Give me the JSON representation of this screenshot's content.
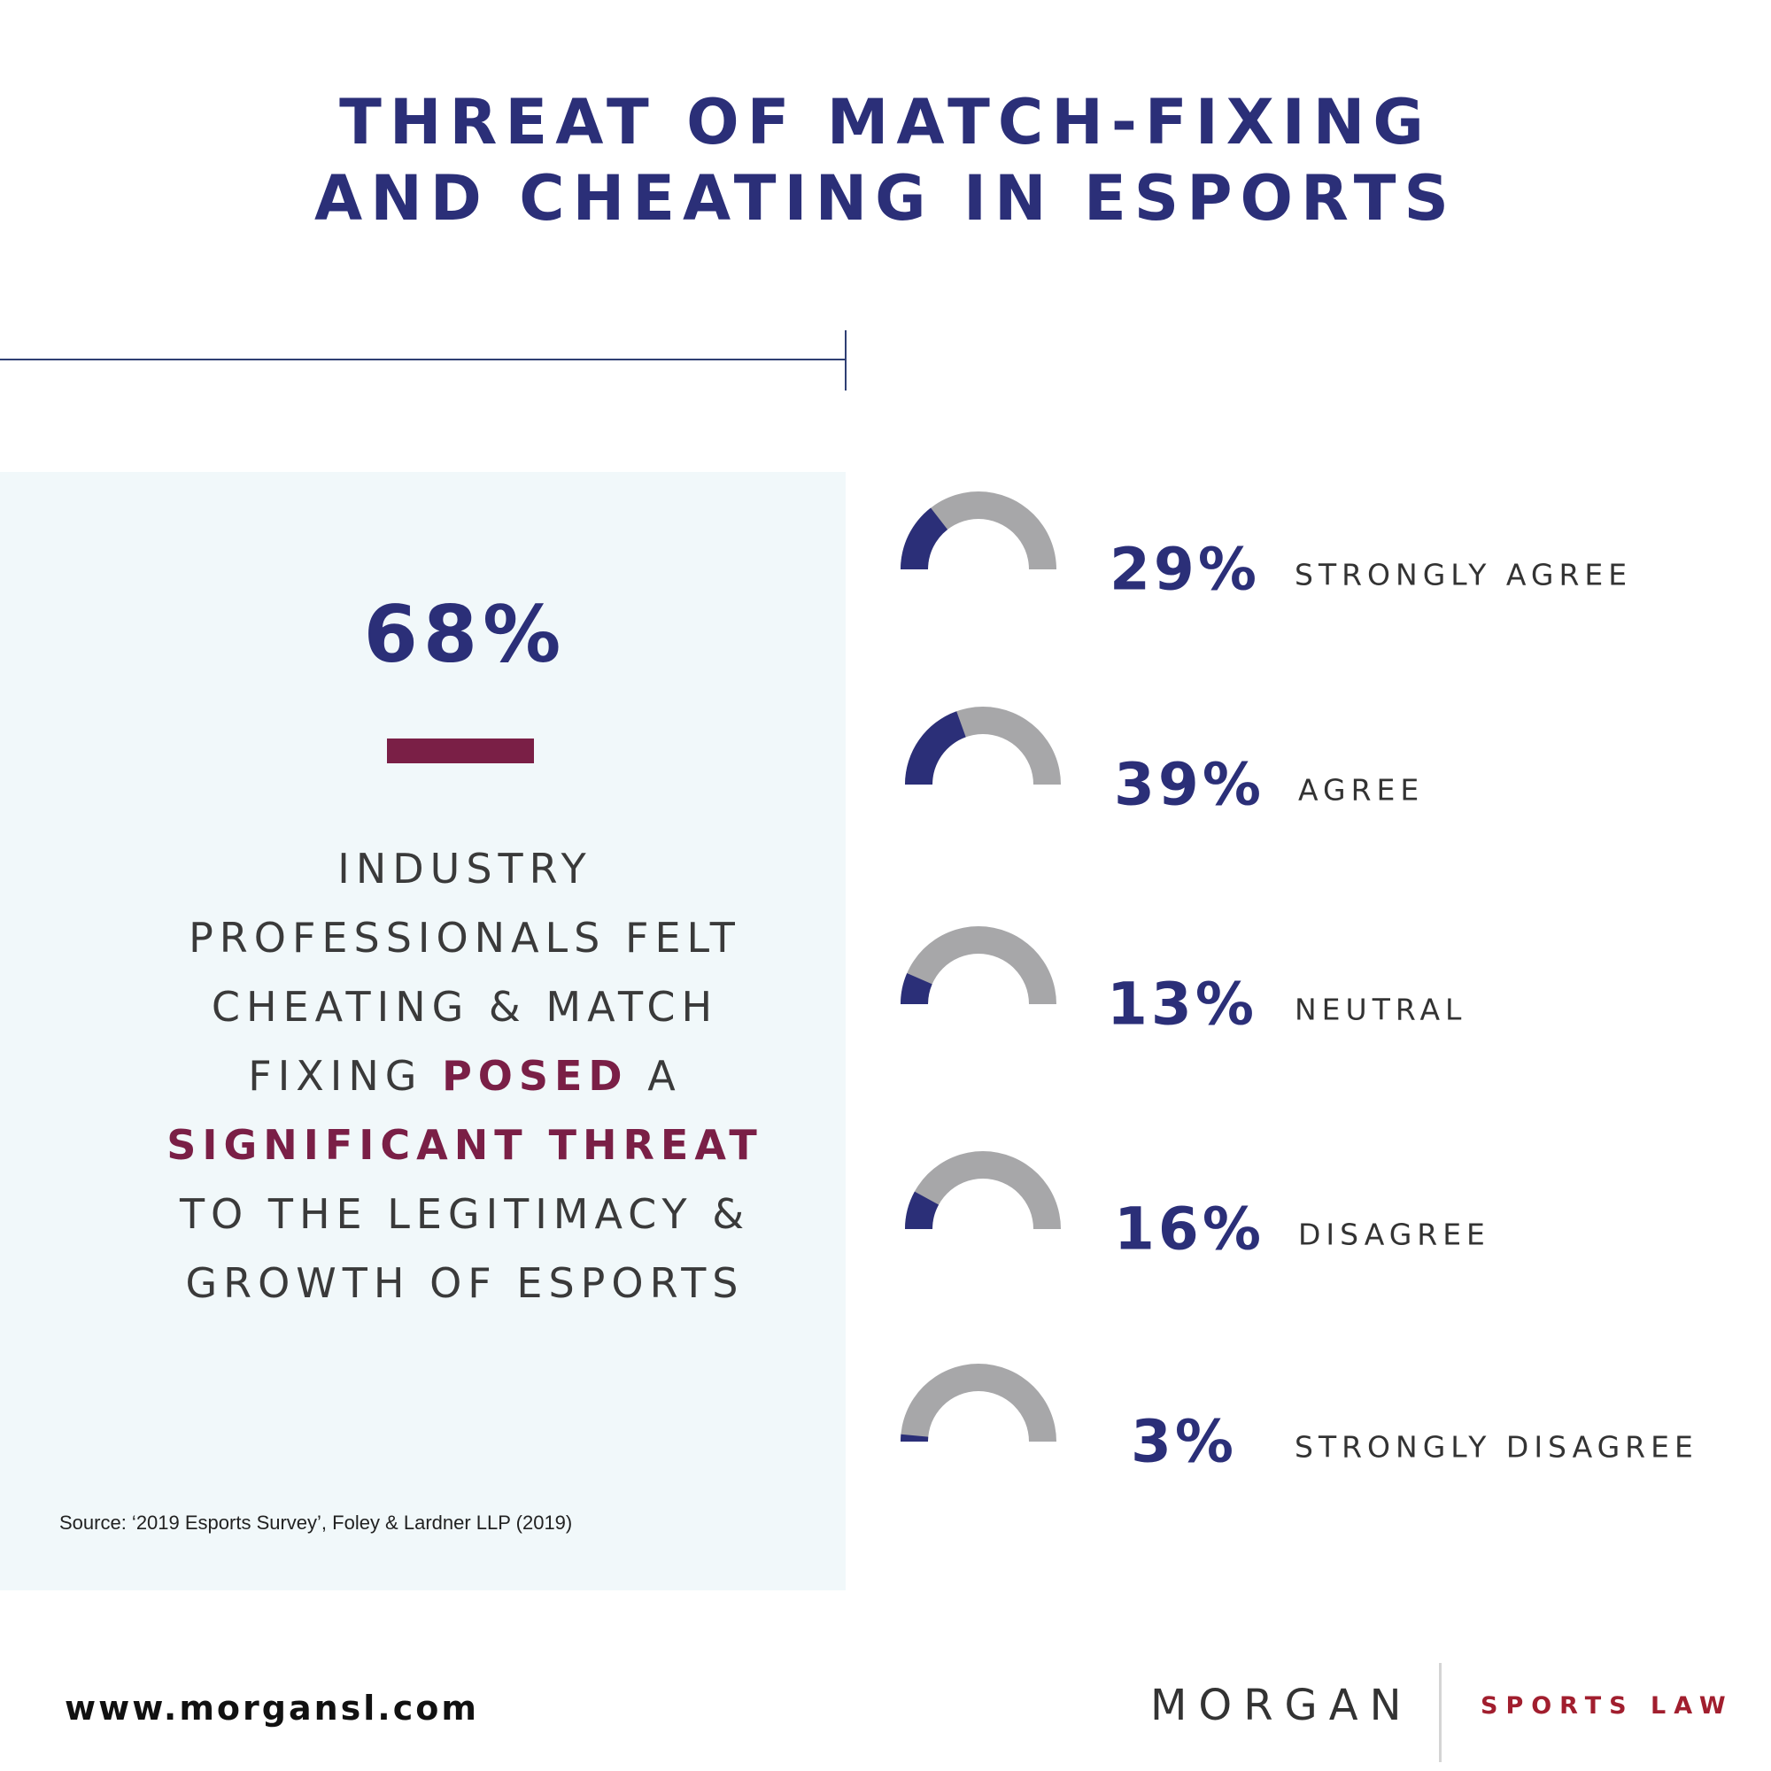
{
  "title": {
    "line1": "THREAT OF MATCH-FIXING",
    "line2": "AND CHEATING IN ESPORTS"
  },
  "summary": {
    "percent": "68%",
    "lines": [
      "INDUSTRY",
      "PROFESSIONALS FELT",
      "CHEATING & MATCH",
      "FIXING ",
      "POSED",
      " A",
      "SIGNIFICANT THREAT",
      "TO THE LEGITIMACY &",
      "GROWTH OF ESPORTS"
    ]
  },
  "source": "Source: ‘2019 Esports  Survey’,  Foley & Lardner LLP  (2019)",
  "chart_data": {
    "type": "gauge",
    "unit": "%",
    "range": [
      0,
      100
    ],
    "items": [
      {
        "label": "STRONGLY AGREE",
        "value": 29,
        "display": "29%"
      },
      {
        "label": "AGREE",
        "value": 39,
        "display": "39%"
      },
      {
        "label": "NEUTRAL",
        "value": 13,
        "display": "13%"
      },
      {
        "label": "DISAGREE",
        "value": 16,
        "display": "16%"
      },
      {
        "label": "STRONGLY DISAGREE",
        "value": 3,
        "display": "3%"
      }
    ],
    "colors": {
      "fill": "#2b2f78",
      "track": "#a7a7a9"
    }
  },
  "footer": {
    "url": "www.morgansl.com",
    "logo_main": "MORGAN",
    "logo_sub": "SPORTS LAW"
  }
}
